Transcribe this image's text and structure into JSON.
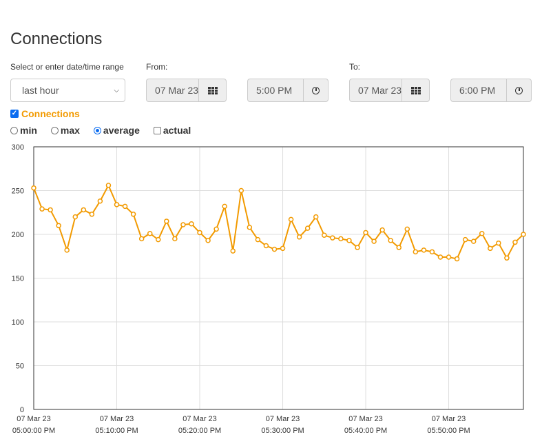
{
  "page": {
    "title": "Connections"
  },
  "range": {
    "label": "Select or enter date/time range",
    "value": "last hour"
  },
  "from": {
    "label": "From:",
    "date": "07 Mar 23",
    "time": "5:00 PM"
  },
  "to": {
    "label": "To:",
    "date": "07 Mar 23",
    "time": "6:00 PM"
  },
  "series_toggle": {
    "label": "Connections",
    "checked": true,
    "color": "#f29a00"
  },
  "options": {
    "min": "min",
    "max": "max",
    "average": "average",
    "actual": "actual",
    "selected": "average"
  },
  "icons": {
    "date_picker": "calendar-icon",
    "time_picker": "clock-icon"
  },
  "chart_data": {
    "type": "line",
    "title": "",
    "xlabel": "",
    "ylabel": "",
    "ylim": [
      0,
      300
    ],
    "yticks": [
      0,
      50,
      100,
      150,
      200,
      250,
      300
    ],
    "xlim": [
      0,
      59
    ],
    "x_tick_positions": [
      0,
      10,
      20,
      30,
      40,
      50
    ],
    "x_tick_dates": [
      "07 Mar 23",
      "07 Mar 23",
      "07 Mar 23",
      "07 Mar 23",
      "07 Mar 23",
      "07 Mar 23"
    ],
    "x_tick_times": [
      "05:00:00 PM",
      "05:10:00 PM",
      "05:20:00 PM",
      "05:30:00 PM",
      "05:40:00 PM",
      "05:50:00 PM"
    ],
    "grid": true,
    "series": [
      {
        "color": "#f29a00",
        "values": [
          253,
          229,
          228,
          210,
          182,
          220,
          228,
          223,
          238,
          256,
          234,
          232,
          223,
          195,
          201,
          194,
          215,
          195,
          211,
          212,
          202,
          193,
          206,
          232,
          181,
          250,
          208,
          194,
          187,
          183,
          184,
          217,
          197,
          207,
          220,
          199,
          196,
          195,
          193,
          185,
          202,
          192,
          205,
          193,
          185,
          206,
          180,
          182,
          180,
          174,
          174,
          172,
          194,
          192,
          201,
          184,
          190,
          173,
          191,
          200
        ]
      }
    ]
  }
}
